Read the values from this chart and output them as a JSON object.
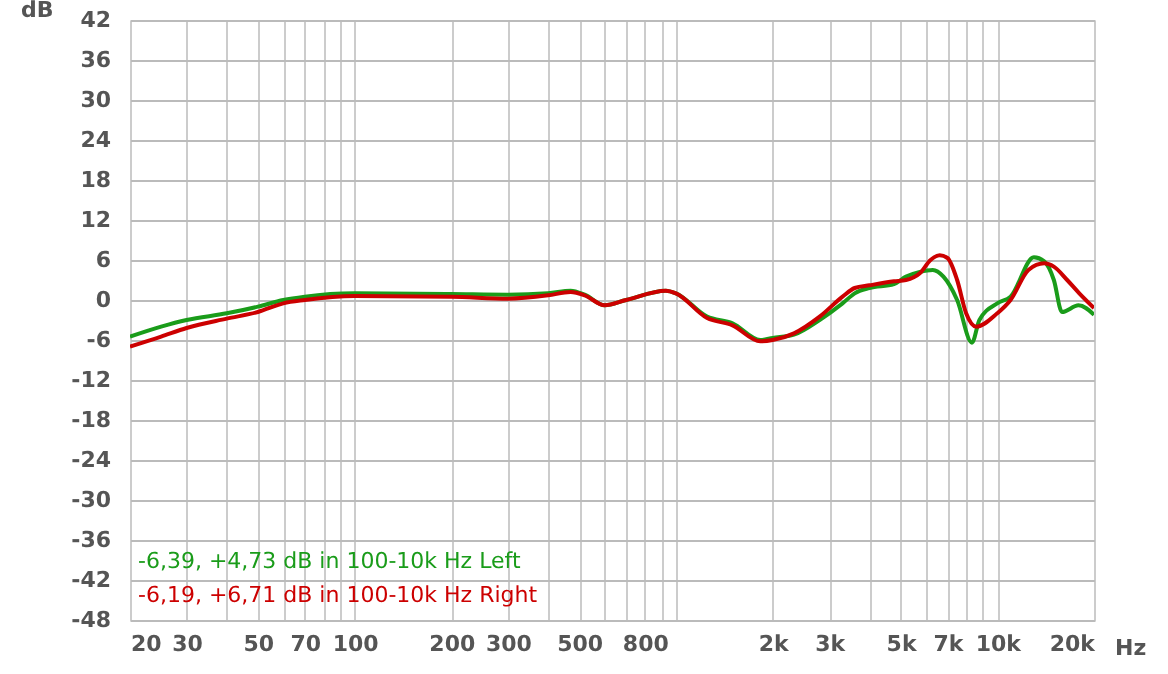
{
  "chart_data": {
    "type": "line",
    "xlabel": "Hz",
    "ylabel": "dB",
    "log": "x",
    "grid": true,
    "line_style": "solid",
    "marker": "none",
    "xlim": [
      20,
      20000
    ],
    "ylim": [
      -48,
      42
    ],
    "xticks": [
      20,
      30,
      {
        "value": 40,
        "label": null
      },
      50,
      {
        "value": 60,
        "label": null
      },
      70,
      {
        "value": 80,
        "label": null
      },
      {
        "value": 90,
        "label": null
      },
      100,
      200,
      300,
      {
        "value": 400,
        "label": null
      },
      500,
      {
        "value": 600,
        "label": null
      },
      {
        "value": 700,
        "label": null
      },
      800,
      {
        "value": 900,
        "label": null
      },
      {
        "value": 1000,
        "label": null
      },
      {
        "value": 2000,
        "label": "2k"
      },
      {
        "value": 3000,
        "label": "3k"
      },
      {
        "value": 4000,
        "label": null
      },
      {
        "value": 5000,
        "label": "5k"
      },
      {
        "value": 6000,
        "label": null
      },
      {
        "value": 7000,
        "label": "7k"
      },
      {
        "value": 8000,
        "label": null
      },
      {
        "value": 9000,
        "label": null
      },
      {
        "value": 10000,
        "label": "10k"
      },
      {
        "value": 20000,
        "label": "20k"
      }
    ],
    "yticks": [
      -48,
      -42,
      -36,
      -30,
      -24,
      -18,
      -12,
      -6,
      0,
      6,
      12,
      18,
      24,
      30,
      36,
      42
    ],
    "series": [
      {
        "color": "#1a9c1a",
        "x": [
          20,
          25,
          30,
          40,
          50,
          60,
          70,
          100,
          200,
          300,
          400,
          470,
          520,
          600,
          700,
          930,
          1000,
          1250,
          1500,
          1830,
          2000,
          2330,
          2800,
          3300,
          3600,
          4000,
          4770,
          5200,
          5740,
          6300,
          6800,
          7500,
          8340,
          8800,
          10000,
          11000,
          13000,
          14000,
          15000,
          15900,
          17900,
          20000
        ],
        "values": [
          -5.5,
          -4,
          -3,
          -2,
          -1,
          0,
          0.5,
          1,
          0.9,
          0.8,
          1,
          1.4,
          0.8,
          -0.8,
          0,
          1.4,
          1,
          -2.5,
          -3.5,
          -6,
          -5.7,
          -5.2,
          -3,
          -0.5,
          1,
          1.8,
          2.4,
          3.5,
          4.2,
          4.5,
          3.5,
          0,
          -6.4,
          -3,
          -0.5,
          0.5,
          6.4,
          5.8,
          3,
          -1.8,
          -0.8,
          -2.2
        ]
      },
      {
        "color": "#cc0000",
        "x": [
          20,
          25,
          30,
          40,
          50,
          60,
          70,
          100,
          200,
          300,
          400,
          470,
          520,
          600,
          700,
          930,
          1000,
          1250,
          1500,
          1830,
          2000,
          2330,
          2800,
          3300,
          3600,
          4000,
          4770,
          5200,
          5740,
          6200,
          6620,
          7000,
          7500,
          8000,
          8600,
          10000,
          11000,
          12500,
          14000,
          15000,
          16500,
          18000,
          20000
        ],
        "values": [
          -7,
          -5.5,
          -4.2,
          -2.8,
          -1.8,
          -0.5,
          0,
          0.6,
          0.5,
          0.2,
          0.7,
          1.2,
          0.7,
          -0.8,
          0,
          1.4,
          1,
          -2.7,
          -3.8,
          -6.2,
          -6,
          -5,
          -2.5,
          0.5,
          1.8,
          2.2,
          2.8,
          3,
          4,
          6,
          6.7,
          6.3,
          3,
          -2,
          -4,
          -2,
          0,
          4.5,
          5.5,
          5,
          3,
          1,
          -1.2
        ]
      }
    ],
    "annotations": [
      "-6,39, +4,73 dB in 100-10k Hz Left",
      "-6,19, +6,71 dB in 100-10k Hz Right"
    ]
  }
}
